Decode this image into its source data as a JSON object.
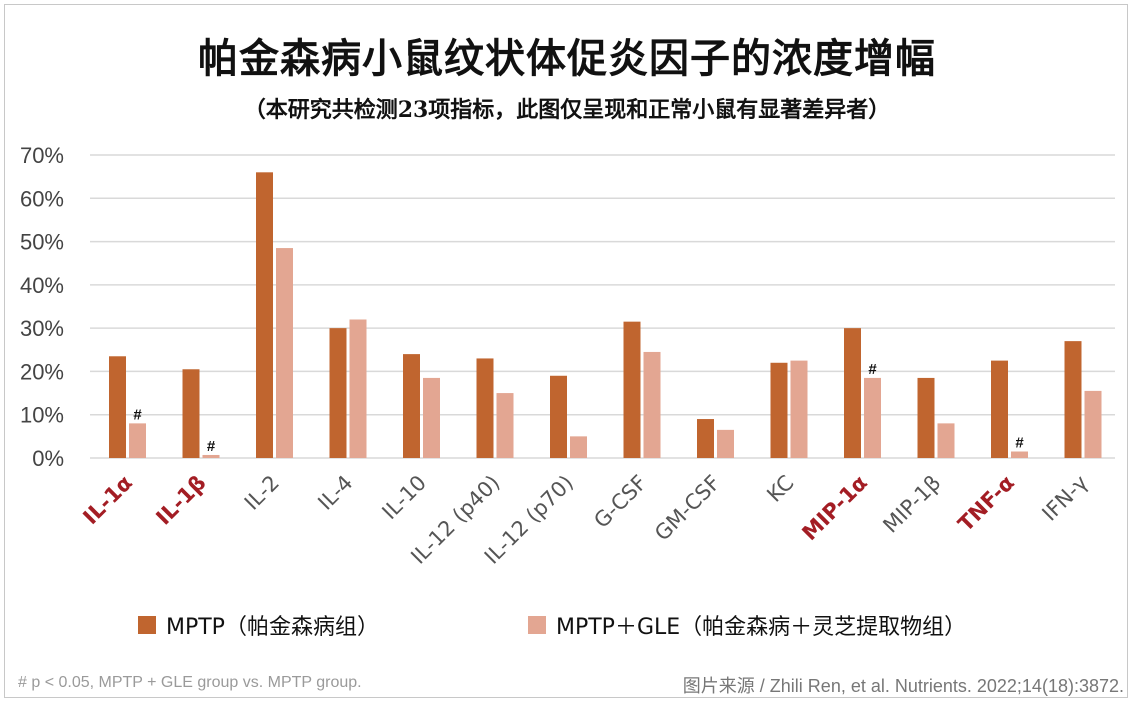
{
  "title": "帕金森病小鼠纹状体促炎因子的浓度增幅",
  "subtitle": "（本研究共检测23项指标，此图仅呈现和正常小鼠有显著差异者）",
  "footnote": "# p < 0.05, MPTP + GLE group vs. MPTP group.",
  "source": "图片来源 / Zhili Ren, et al. Nutrients. 2022;14(18):3872.",
  "colors": {
    "mptp": "#c0652f",
    "gle": "#e3a692",
    "highlight_label": "#a31d24",
    "normal_label": "#555555",
    "grid": "#d9d9d9"
  },
  "legend": [
    {
      "label": "MPTP（帕金森病组）"
    },
    {
      "label": "MPTP＋GLE（帕金森病＋灵芝提取物组）"
    }
  ],
  "chart_data": {
    "type": "bar",
    "title": "帕金森病小鼠纹状体促炎因子的浓度增幅",
    "subtitle": "（本研究共检测23项指标，此图仅呈现和正常小鼠有显著差异者）",
    "categories": [
      "IL-1α",
      "IL-1β",
      "IL-2",
      "IL-4",
      "IL-10",
      "IL-12 (p40)",
      "IL-12 (p70)",
      "G-CSF",
      "GM-CSF",
      "KC",
      "MIP-1α",
      "MIP-1β",
      "TNF-α",
      "IFN-γ"
    ],
    "highlighted_categories": [
      "IL-1α",
      "IL-1β",
      "MIP-1α",
      "TNF-α"
    ],
    "series": [
      {
        "name": "MPTP（帕金森病组）",
        "values": [
          23.5,
          20.5,
          66,
          30,
          24,
          23,
          19,
          31.5,
          9,
          22,
          30,
          18.5,
          22.5,
          27
        ]
      },
      {
        "name": "MPTP＋GLE（帕金森病＋灵芝提取物组）",
        "values": [
          8,
          0.7,
          48.5,
          32,
          18.5,
          15,
          5,
          24.5,
          6.5,
          22.5,
          18.5,
          8,
          1.5,
          15.5
        ]
      }
    ],
    "significance_marks": [
      {
        "category": "IL-1α",
        "label": "#"
      },
      {
        "category": "IL-1β",
        "label": "#"
      },
      {
        "category": "MIP-1α",
        "label": "#"
      },
      {
        "category": "TNF-α",
        "label": "#"
      }
    ],
    "y_ticks": [
      "0%",
      "10%",
      "20%",
      "30%",
      "40%",
      "50%",
      "60%",
      "70%"
    ],
    "ylim": [
      0,
      70
    ],
    "xlabel": "",
    "ylabel": "",
    "grid": true,
    "legend_position": "bottom"
  }
}
